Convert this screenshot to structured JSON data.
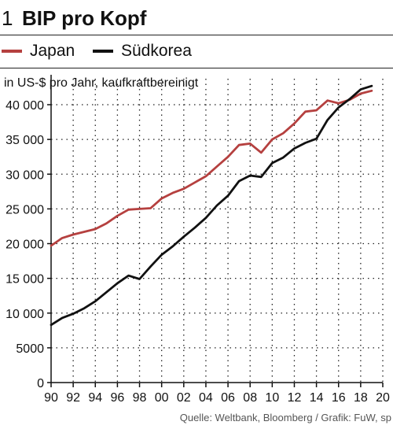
{
  "header": {
    "number": "1",
    "title": "BIP pro Kopf"
  },
  "chart_data": {
    "type": "line",
    "unit_label": "in US-$ pro Jahr, kaufkraftbereinigt",
    "x_tick_labels": [
      "90",
      "92",
      "94",
      "96",
      "98",
      "00",
      "02",
      "04",
      "06",
      "08",
      "10",
      "12",
      "14",
      "16",
      "18",
      "20"
    ],
    "y_tick_labels": [
      "0",
      "5000",
      "10 000",
      "15 000",
      "20 000",
      "25 000",
      "30 000",
      "35 000",
      "40 000"
    ],
    "xlim": [
      1990,
      2020
    ],
    "ylim": [
      0,
      42000
    ],
    "grid": true,
    "legend_position": "top",
    "series": [
      {
        "name": "Japan",
        "color": "#b5403f",
        "x": [
          1990,
          1991,
          1992,
          1993,
          1994,
          1995,
          1996,
          1997,
          1998,
          1999,
          2000,
          2001,
          2002,
          2003,
          2004,
          2005,
          2006,
          2007,
          2008,
          2009,
          2010,
          2011,
          2012,
          2013,
          2014,
          2015,
          2016,
          2017,
          2018,
          2019
        ],
        "values": [
          19700,
          20800,
          21300,
          21700,
          22100,
          22900,
          24000,
          24900,
          25000,
          25100,
          26500,
          27300,
          27900,
          28800,
          29700,
          31100,
          32500,
          34200,
          34400,
          33100,
          35000,
          35900,
          37300,
          39000,
          39200,
          40600,
          40200,
          40700,
          41600,
          42000
        ]
      },
      {
        "name": "Südkorea",
        "color": "#111111",
        "x": [
          1990,
          1991,
          1992,
          1993,
          1994,
          1995,
          1996,
          1997,
          1998,
          1999,
          2000,
          2001,
          2002,
          2003,
          2004,
          2005,
          2006,
          2007,
          2008,
          2009,
          2010,
          2011,
          2012,
          2013,
          2014,
          2015,
          2016,
          2017,
          2018,
          2019
        ],
        "values": [
          8300,
          9300,
          9900,
          10700,
          11700,
          13000,
          14300,
          15400,
          14900,
          16700,
          18400,
          19600,
          21000,
          22300,
          23700,
          25500,
          26900,
          29000,
          29800,
          29600,
          31600,
          32400,
          33700,
          34500,
          35100,
          37800,
          39600,
          40800,
          42200,
          42700
        ]
      }
    ]
  },
  "source": "Quelle: Weltbank, Bloomberg / Grafik: FuW, sp"
}
